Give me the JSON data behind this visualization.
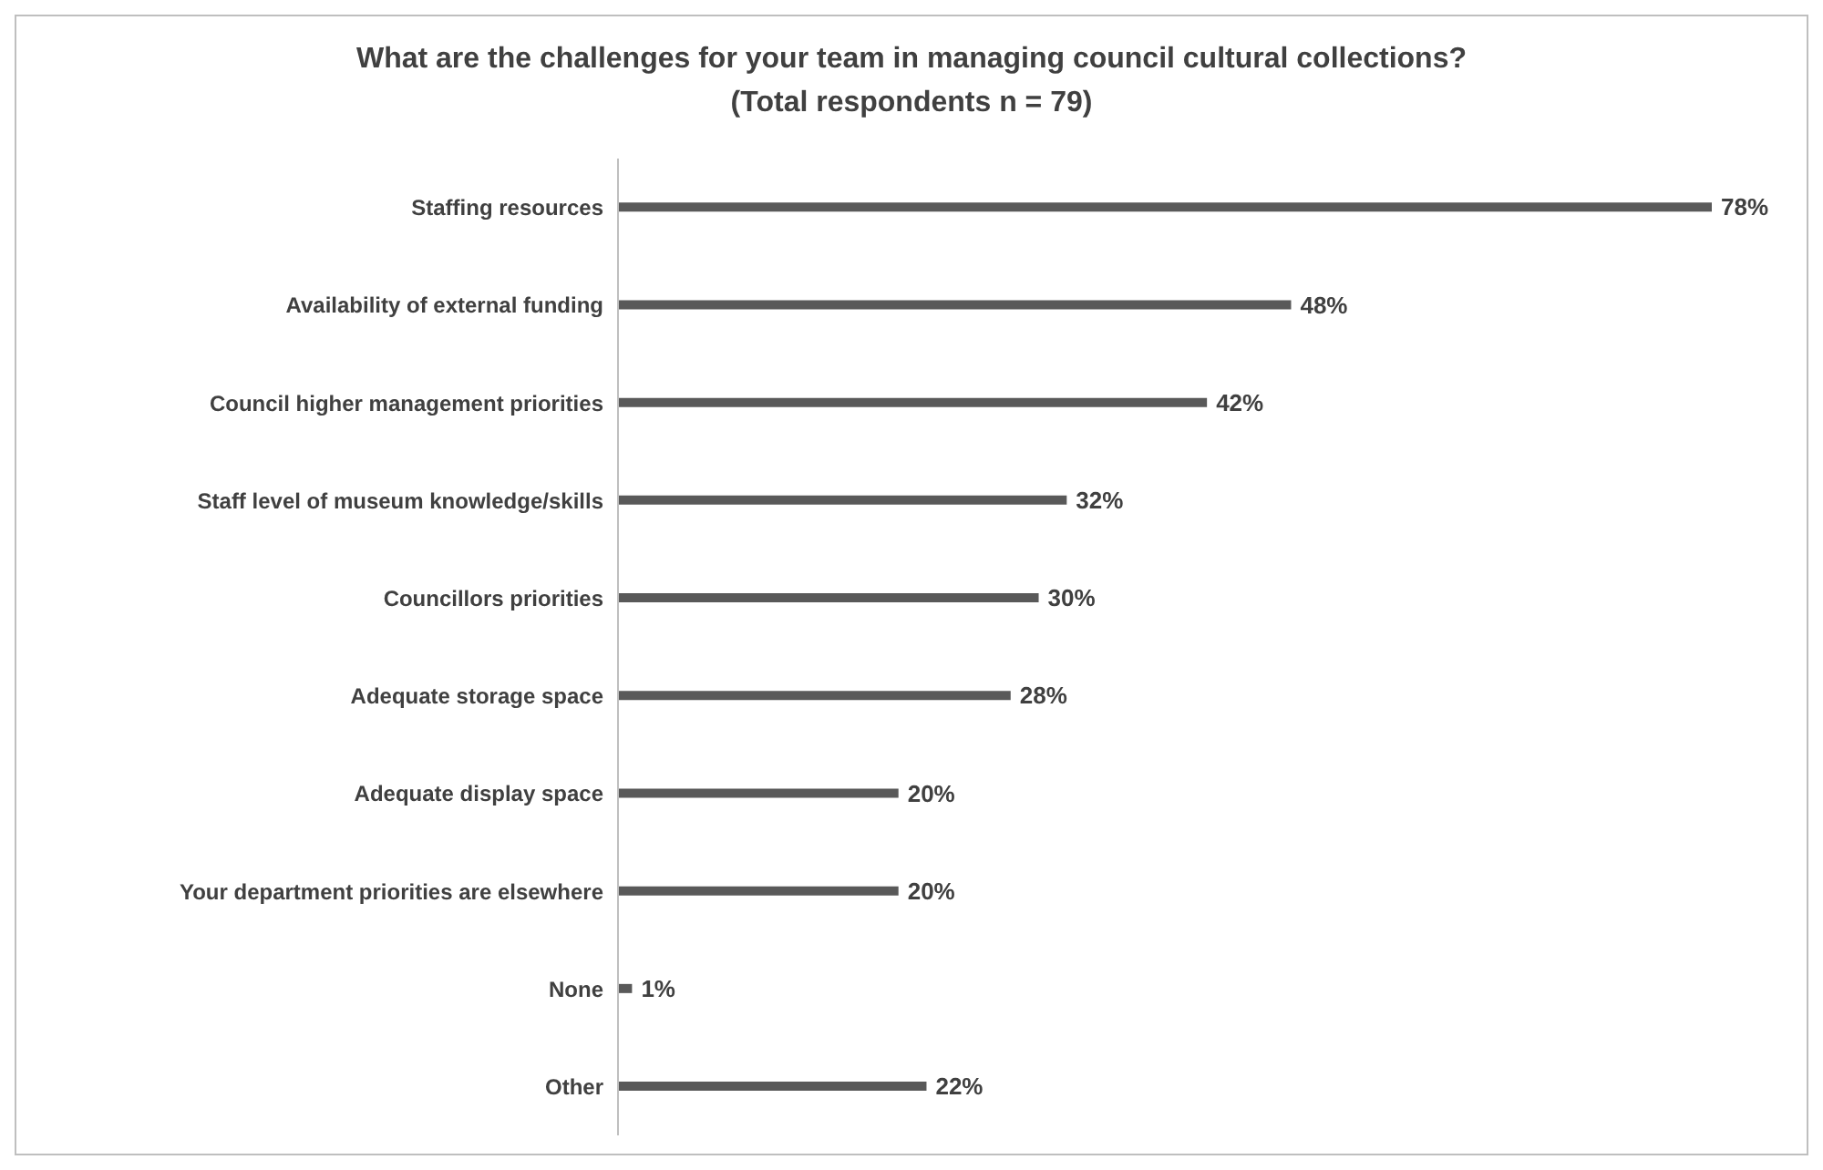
{
  "chart_data": {
    "type": "bar",
    "orientation": "horizontal",
    "title": "What are the challenges for your team in managing council cultural collections?\n(Total respondents n = 79)",
    "categories": [
      "Staffing resources",
      "Availability of external funding",
      "Council higher management priorities",
      "Staff level of museum knowledge/skills",
      "Councillors priorities",
      "Adequate storage space",
      "Adequate display space",
      "Your department priorities are elsewhere",
      "None",
      "Other"
    ],
    "values": [
      78,
      48,
      42,
      32,
      30,
      28,
      20,
      20,
      1,
      22
    ],
    "value_labels": [
      "78%",
      "48%",
      "42%",
      "32%",
      "30%",
      "28%",
      "20%",
      "20%",
      "1%",
      "22%"
    ],
    "color": "#595959",
    "grid": false,
    "legend": false
  }
}
